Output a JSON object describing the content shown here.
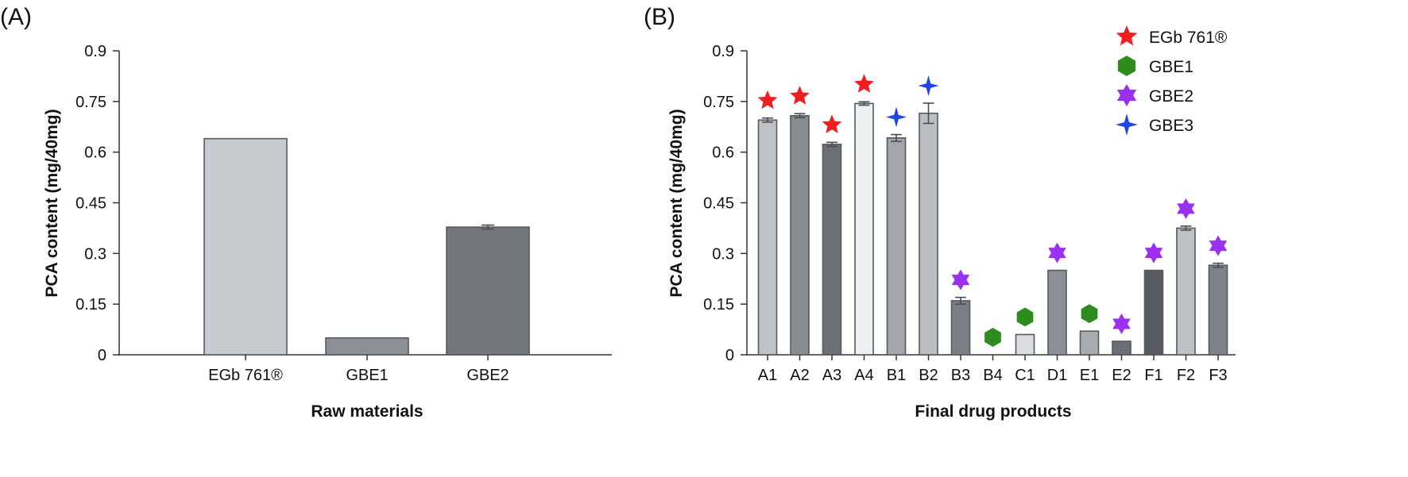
{
  "chart_data": [
    {
      "panel_label": "(A)",
      "type": "bar",
      "categories": [
        "EGb 761®",
        "GBE1",
        "GBE2"
      ],
      "values": [
        0.64,
        0.05,
        0.378
      ],
      "errors": [
        0,
        0,
        0.006
      ],
      "bar_colors": [
        "#c8cacd",
        "#8c8f93",
        "#73777c"
      ],
      "xlabel": "Raw materials",
      "ylabel": "PCA content (mg/40mg)",
      "ylim": [
        0,
        0.9
      ],
      "yticks": [
        "0",
        "0.15",
        "0.3",
        "0.45",
        "0.6",
        "0.75",
        "0.9"
      ],
      "grid": false
    },
    {
      "panel_label": "(B)",
      "type": "bar",
      "categories": [
        "A1",
        "A2",
        "A3",
        "A4",
        "B1",
        "B2",
        "B3",
        "B4",
        "C1",
        "D1",
        "E1",
        "E2",
        "F1",
        "F2",
        "F3"
      ],
      "values": [
        0.695,
        0.708,
        0.623,
        0.744,
        0.642,
        0.715,
        0.16,
        0,
        0.06,
        0.25,
        0.07,
        0.04,
        0.25,
        0.375,
        0.265
      ],
      "errors": [
        0.006,
        0.006,
        0.006,
        0.005,
        0.01,
        0.03,
        0.01,
        0,
        0,
        0,
        0,
        0,
        0,
        0.006,
        0.006
      ],
      "bar_colors": [
        "#c0c2c5",
        "#898c91",
        "#6d7176",
        "#eeeff0",
        "#a3a6aa",
        "#bcbec2",
        "#7b7f84",
        "#ffffff",
        "#dcdde0",
        "#8c8f93",
        "#a9abaf",
        "#6b6f74",
        "#575b60",
        "#bfc1c4",
        "#7f8388"
      ],
      "markers": [
        "EGb 761®",
        "EGb 761®",
        "EGb 761®",
        "EGb 761®",
        "GBE3",
        "GBE3",
        "GBE2",
        "GBE1",
        "GBE1",
        "GBE2",
        "GBE1",
        "GBE2",
        "GBE2",
        "GBE2",
        "GBE2"
      ],
      "xlabel": "Final drug products",
      "ylabel": "PCA content (mg/40mg)",
      "ylim": [
        0,
        0.9
      ],
      "yticks": [
        "0",
        "0.15",
        "0.3",
        "0.45",
        "0.6",
        "0.75",
        "0.9"
      ],
      "legend_placement": "top-right",
      "legend": [
        {
          "name": "EGb 761®",
          "shape": "star",
          "color": "#f01e1e"
        },
        {
          "name": "GBE1",
          "shape": "hexagon",
          "color": "#2e8b1e"
        },
        {
          "name": "GBE2",
          "shape": "hexagram",
          "color": "#9b30f0"
        },
        {
          "name": "GBE3",
          "shape": "four-point-star",
          "color": "#1e46e6"
        }
      ],
      "grid": false
    }
  ]
}
